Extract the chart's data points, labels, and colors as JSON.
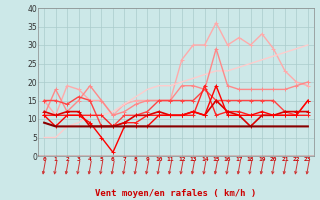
{
  "xlabel": "Vent moyen/en rafales ( km/h )",
  "x": [
    0,
    1,
    2,
    3,
    4,
    5,
    6,
    7,
    8,
    9,
    10,
    11,
    12,
    13,
    14,
    15,
    16,
    17,
    18,
    19,
    20,
    21,
    22,
    23
  ],
  "ylim": [
    0,
    40
  ],
  "yticks": [
    0,
    5,
    10,
    15,
    20,
    25,
    30,
    35,
    40
  ],
  "background_color": "#cce8e8",
  "grid_color": "#aacccc",
  "lines": [
    {
      "y": [
        15,
        11,
        19,
        18,
        15,
        15,
        11,
        14,
        15,
        15,
        15,
        15,
        26,
        30,
        30,
        36,
        30,
        32,
        30,
        33,
        29,
        23,
        20,
        19
      ],
      "color": "#ffaaaa",
      "lw": 1.0,
      "marker": "+",
      "ms": 3,
      "zorder": 2
    },
    {
      "y": [
        5,
        5,
        8,
        9,
        11,
        11,
        12,
        14,
        16,
        18,
        19,
        19,
        20,
        21,
        22,
        23,
        23,
        24,
        25,
        26,
        27,
        28,
        29,
        30
      ],
      "color": "#ffcccc",
      "lw": 1.0,
      "marker": null,
      "ms": 0,
      "zorder": 2
    },
    {
      "y": [
        11,
        18,
        12,
        15,
        19,
        15,
        11,
        12,
        14,
        15,
        15,
        15,
        19,
        19,
        18,
        29,
        19,
        18,
        18,
        18,
        18,
        18,
        19,
        20
      ],
      "color": "#ff8888",
      "lw": 1.0,
      "marker": "+",
      "ms": 3,
      "zorder": 3
    },
    {
      "y": [
        15,
        15,
        14,
        16,
        15,
        8,
        8,
        11,
        11,
        12,
        15,
        15,
        15,
        15,
        18,
        15,
        15,
        15,
        15,
        15,
        15,
        12,
        11,
        15
      ],
      "color": "#ff4444",
      "lw": 1.0,
      "marker": "+",
      "ms": 3,
      "zorder": 4
    },
    {
      "y": [
        11,
        11,
        11,
        11,
        11,
        11,
        8,
        9,
        9,
        11,
        11,
        11,
        11,
        11,
        19,
        11,
        12,
        12,
        11,
        11,
        11,
        11,
        11,
        11
      ],
      "color": "#ff2222",
      "lw": 1.0,
      "marker": "+",
      "ms": 3,
      "zorder": 4
    },
    {
      "y": [
        12,
        11,
        12,
        12,
        8,
        8,
        8,
        9,
        11,
        11,
        12,
        11,
        11,
        12,
        11,
        15,
        12,
        11,
        8,
        11,
        11,
        12,
        12,
        12
      ],
      "color": "#dd0000",
      "lw": 1.2,
      "marker": "+",
      "ms": 3,
      "zorder": 5
    },
    {
      "y": [
        11,
        8,
        11,
        11,
        9,
        5,
        1,
        8,
        8,
        8,
        11,
        11,
        11,
        12,
        11,
        19,
        11,
        11,
        11,
        12,
        11,
        11,
        11,
        15
      ],
      "color": "#ff0000",
      "lw": 1.0,
      "marker": "+",
      "ms": 3,
      "zorder": 5
    },
    {
      "y": [
        9,
        8,
        8,
        8,
        8,
        8,
        8,
        8,
        8,
        8,
        8,
        8,
        8,
        8,
        8,
        8,
        8,
        8,
        8,
        8,
        8,
        8,
        8,
        8
      ],
      "color": "#880000",
      "lw": 1.5,
      "marker": null,
      "ms": 0,
      "zorder": 6
    }
  ],
  "arrow_color": "#cc3333",
  "red_line_y": 0
}
